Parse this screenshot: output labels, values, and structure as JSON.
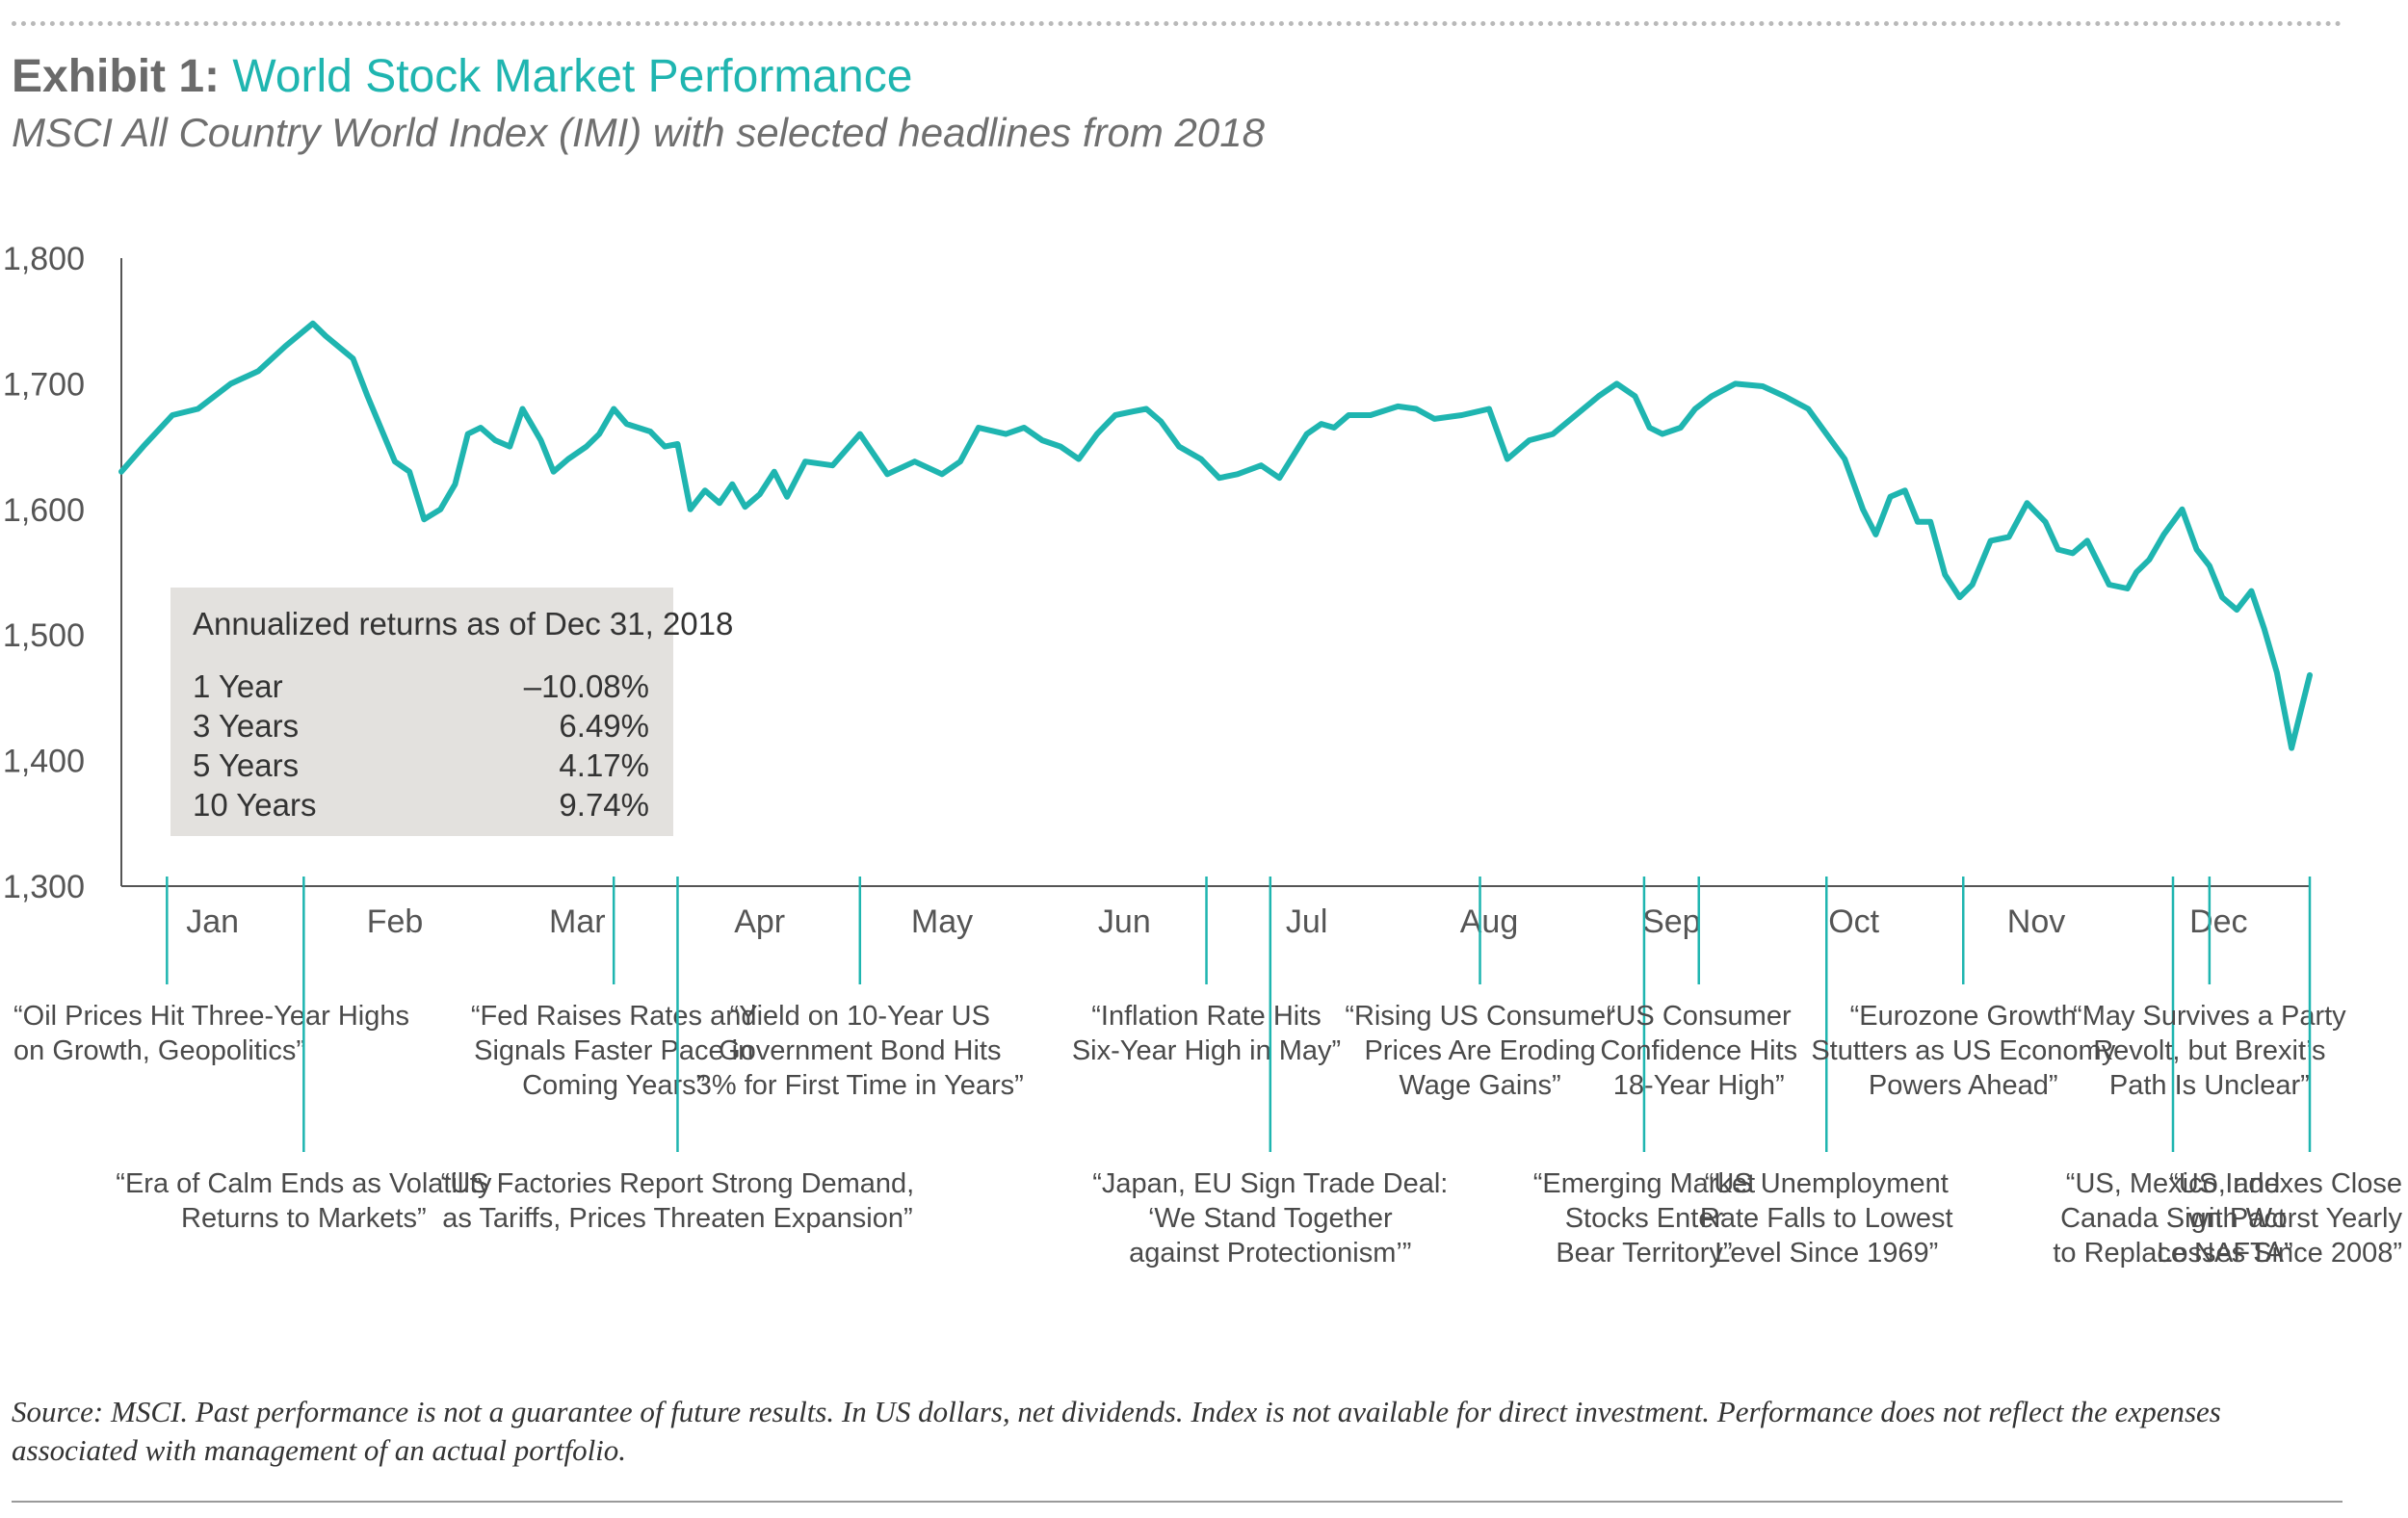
{
  "header": {
    "exhibit_label": "Exhibit 1:",
    "title": "World Stock Market Performance",
    "subtitle": "MSCI All Country World Index (IMI) with selected headlines from 2018"
  },
  "colors": {
    "line": "#1fb5b0",
    "accent": "#1fb5b0",
    "box_bg": "#e3e1de",
    "axis": "#555555"
  },
  "chart_data": {
    "type": "line",
    "title": "World Stock Market Performance",
    "subtitle": "MSCI All Country World Index (IMI) with selected headlines from 2018",
    "xlabel": "",
    "ylabel": "",
    "ylim": [
      1300,
      1800
    ],
    "yticks": [
      1300,
      1400,
      1500,
      1600,
      1700,
      1800
    ],
    "ytick_labels": [
      "1,300",
      "1,400",
      "1,500",
      "1,600",
      "1,700",
      "1,800"
    ],
    "grid": false,
    "months": [
      "Jan",
      "Feb",
      "Mar",
      "Apr",
      "May",
      "Jun",
      "Jul",
      "Aug",
      "Sep",
      "Oct",
      "Nov",
      "Dec"
    ],
    "x_unit": "month index (0 = Jan 1, 12 = Dec 31)",
    "series": [
      {
        "name": "MSCI All Country World Index (IMI)",
        "x": [
          0.0,
          0.12,
          0.28,
          0.42,
          0.6,
          0.75,
          0.9,
          1.05,
          1.12,
          1.27,
          1.35,
          1.5,
          1.58,
          1.66,
          1.75,
          1.83,
          1.9,
          1.97,
          2.05,
          2.13,
          2.2,
          2.3,
          2.37,
          2.45,
          2.55,
          2.62,
          2.7,
          2.77,
          2.9,
          2.98,
          3.05,
          3.12,
          3.2,
          3.28,
          3.35,
          3.42,
          3.5,
          3.58,
          3.65,
          3.75,
          3.9,
          4.05,
          4.2,
          4.35,
          4.5,
          4.6,
          4.7,
          4.85,
          4.95,
          5.05,
          5.15,
          5.25,
          5.35,
          5.45,
          5.55,
          5.62,
          5.7,
          5.8,
          5.92,
          6.02,
          6.12,
          6.25,
          6.35,
          6.5,
          6.58,
          6.65,
          6.73,
          6.85,
          7.0,
          7.1,
          7.2,
          7.35,
          7.5,
          7.6,
          7.72,
          7.85,
          8.0,
          8.1,
          8.2,
          8.3,
          8.38,
          8.45,
          8.55,
          8.63,
          8.72,
          8.85,
          9.0,
          9.12,
          9.25,
          9.35,
          9.45,
          9.55,
          9.62,
          9.7,
          9.78,
          9.85,
          9.92,
          10.0,
          10.08,
          10.15,
          10.25,
          10.35,
          10.45,
          10.55,
          10.62,
          10.7,
          10.78,
          10.9,
          11.0,
          11.05,
          11.12,
          11.2,
          11.3,
          11.38,
          11.45,
          11.52,
          11.6,
          11.68,
          11.75,
          11.82,
          11.9,
          12.0
        ],
        "values": [
          1630,
          1650,
          1675,
          1680,
          1700,
          1710,
          1730,
          1748,
          1738,
          1720,
          1690,
          1638,
          1630,
          1592,
          1600,
          1620,
          1660,
          1665,
          1655,
          1650,
          1680,
          1655,
          1630,
          1640,
          1650,
          1660,
          1680,
          1668,
          1662,
          1650,
          1652,
          1600,
          1615,
          1605,
          1620,
          1602,
          1612,
          1630,
          1610,
          1638,
          1635,
          1660,
          1628,
          1638,
          1628,
          1638,
          1665,
          1660,
          1665,
          1655,
          1650,
          1640,
          1660,
          1675,
          1678,
          1680,
          1670,
          1650,
          1640,
          1625,
          1628,
          1635,
          1625,
          1660,
          1668,
          1665,
          1675,
          1675,
          1682,
          1680,
          1672,
          1675,
          1680,
          1640,
          1655,
          1660,
          1678,
          1690,
          1700,
          1690,
          1665,
          1660,
          1665,
          1680,
          1690,
          1700,
          1698,
          1690,
          1680,
          1660,
          1640,
          1600,
          1580,
          1610,
          1615,
          1590,
          1590,
          1548,
          1530,
          1540,
          1575,
          1578,
          1605,
          1590,
          1568,
          1565,
          1575,
          1540,
          1537,
          1550,
          1560,
          1580,
          1600,
          1568,
          1555,
          1530,
          1520,
          1535,
          1505,
          1470,
          1410,
          1468
        ]
      }
    ],
    "month_ticks_x": [
      1.0,
      1.9,
      3.0,
      3.95,
      5.95,
      7.0,
      8.0,
      9.0,
      9.4,
      10.0,
      11.0,
      11.5
    ],
    "annotations": [
      {
        "x": 0.25,
        "row": 0,
        "lines": [
          "“Oil Prices Hit Three-Year Highs",
          "on Growth, Geopolitics”"
        ]
      },
      {
        "x": 1.0,
        "row": 1,
        "lines": [
          "“Era of Calm Ends as Volatility",
          "Returns to Markets”"
        ]
      },
      {
        "x": 2.7,
        "row": 0,
        "lines": [
          "“Fed Raises Rates and",
          "Signals Faster Pace in",
          "Coming Years”"
        ]
      },
      {
        "x": 3.05,
        "row": 1,
        "lines": [
          "“US Factories Report Strong Demand,",
          "as Tariffs, Prices Threaten Expansion”"
        ]
      },
      {
        "x": 4.05,
        "row": 0,
        "lines": [
          "“Yield on 10-Year US",
          "Government Bond Hits",
          "3% for First Time in Years”"
        ]
      },
      {
        "x": 5.95,
        "row": 0,
        "lines": [
          "“Inflation Rate Hits",
          "Six-Year High in May”"
        ]
      },
      {
        "x": 6.3,
        "row": 1,
        "lines": [
          "“Japan, EU Sign Trade Deal:",
          "‘We Stand Together",
          "against Protectionism’”"
        ]
      },
      {
        "x": 7.45,
        "row": 0,
        "lines": [
          "“Rising US Consumer",
          "Prices Are Eroding",
          "Wage Gains”"
        ]
      },
      {
        "x": 8.35,
        "row": 1,
        "lines": [
          "“Emerging Market",
          "Stocks Enter",
          "Bear Territory”"
        ]
      },
      {
        "x": 8.65,
        "row": 0,
        "lines": [
          "“US Consumer",
          "Confidence Hits",
          "18-Year High”"
        ]
      },
      {
        "x": 9.35,
        "row": 1,
        "lines": [
          "“US Unemployment",
          "Rate Falls to Lowest",
          "Level Since 1969”"
        ]
      },
      {
        "x": 10.1,
        "row": 0,
        "lines": [
          "“Eurozone Growth",
          "Stutters as US Economy",
          "Powers Ahead”"
        ]
      },
      {
        "x": 11.25,
        "row": 1,
        "lines": [
          "“US, Mexico, and",
          "Canada Sign Pact",
          "to Replace NAFTA”"
        ]
      },
      {
        "x": 11.45,
        "row": 0,
        "lines": [
          "“May Survives a Party",
          "Revolt, but Brexit’s",
          "Path Is Unclear”"
        ]
      },
      {
        "x": 12.0,
        "row": 1,
        "lines": [
          "“US Indexes Close",
          "with Worst Yearly",
          "Losses Since 2008”"
        ]
      }
    ],
    "returns_box": {
      "title": "Annualized returns as of Dec 31, 2018",
      "rows": [
        {
          "period": "1 Year",
          "value": "–10.08%"
        },
        {
          "period": "3 Years",
          "value": "6.49%"
        },
        {
          "period": "5 Years",
          "value": "4.17%"
        },
        {
          "period": "10 Years",
          "value": "9.74%"
        }
      ]
    }
  },
  "source_note": "Source: MSCI. Past performance is not a guarantee of future results. In US dollars, net dividends. Index is not available for direct investment. Performance does not reflect the expenses associated with management of an actual portfolio."
}
